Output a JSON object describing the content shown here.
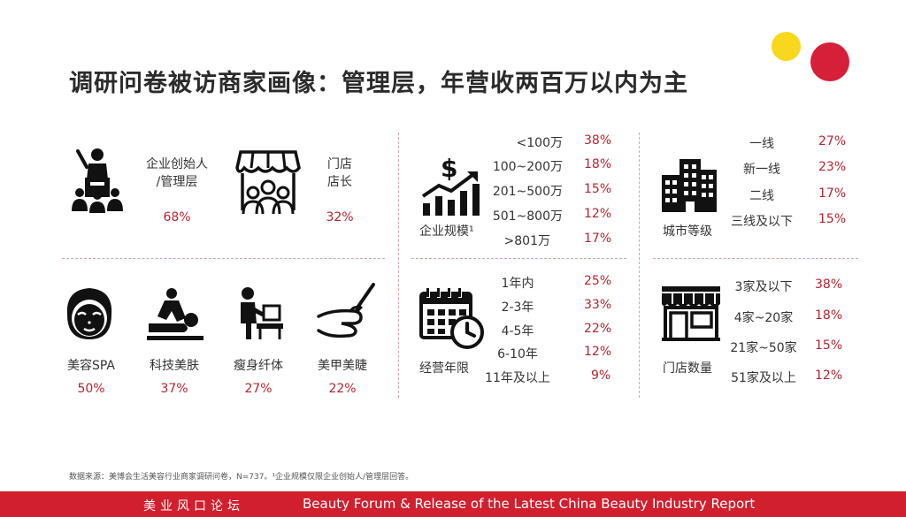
{
  "title": "调研问卷被访商家画像：管理层，年营收两百万以内为主",
  "colors": {
    "accent_red": "#d11f2e",
    "percent_red": "#b8232e",
    "dot_yellow": "#f8d81c",
    "dot_red": "#d61f38"
  },
  "respondent": [
    {
      "icon": "presenter-podium-icon",
      "label_line1": "企业创始人",
      "label_line2": "/管理层",
      "pct": "68%"
    },
    {
      "icon": "store-staff-icon",
      "label_line1": "门店",
      "label_line2": "店长",
      "pct": "32%"
    }
  ],
  "business_types": [
    {
      "icon": "face-mask-icon",
      "label": "美容SPA",
      "pct": "50%"
    },
    {
      "icon": "massage-icon",
      "label": "科技美肤",
      "pct": "37%"
    },
    {
      "icon": "fitness-icon",
      "label": "瘦身纤体",
      "pct": "27%"
    },
    {
      "icon": "nail-polish-icon",
      "label": "美甲美睫",
      "pct": "22%"
    }
  ],
  "scale": {
    "icon": "revenue-growth-icon",
    "title": "企业规模¹",
    "rows": [
      {
        "label": "<100万",
        "pct": "38%"
      },
      {
        "label": "100~200万",
        "pct": "18%"
      },
      {
        "label": "201~500万",
        "pct": "15%"
      },
      {
        "label": "501~800万",
        "pct": "12%"
      },
      {
        "label": ">801万",
        "pct": "17%"
      }
    ]
  },
  "city": {
    "icon": "city-buildings-icon",
    "title": "城市等级",
    "rows": [
      {
        "label": "一线",
        "pct": "27%"
      },
      {
        "label": "新一线",
        "pct": "23%"
      },
      {
        "label": "二线",
        "pct": "17%"
      },
      {
        "label": "三线及以下",
        "pct": "15%"
      }
    ]
  },
  "years": {
    "icon": "calendar-clock-icon",
    "title": "经营年限",
    "rows": [
      {
        "label": "1年内",
        "pct": "25%"
      },
      {
        "label": "2-3年",
        "pct": "33%"
      },
      {
        "label": "4-5年",
        "pct": "22%"
      },
      {
        "label": "6-10年",
        "pct": "12%"
      },
      {
        "label": "11年及以上",
        "pct": "9%"
      }
    ]
  },
  "stores": {
    "icon": "storefront-icon",
    "title": "门店数量",
    "rows": [
      {
        "label": "3家及以下",
        "pct": "38%"
      },
      {
        "label": "4家~20家",
        "pct": "18%"
      },
      {
        "label": "21家~50家",
        "pct": "15%"
      },
      {
        "label": "51家及以上",
        "pct": "12%"
      }
    ]
  },
  "source": "数据来源：美博会生活美容行业商家调研问卷，N=737。¹企业规模仅限企业创始人/管理层回答。",
  "footer": {
    "cn": "美业风口论坛",
    "en": "Beauty Forum & Release of the Latest China Beauty Industry Report"
  }
}
